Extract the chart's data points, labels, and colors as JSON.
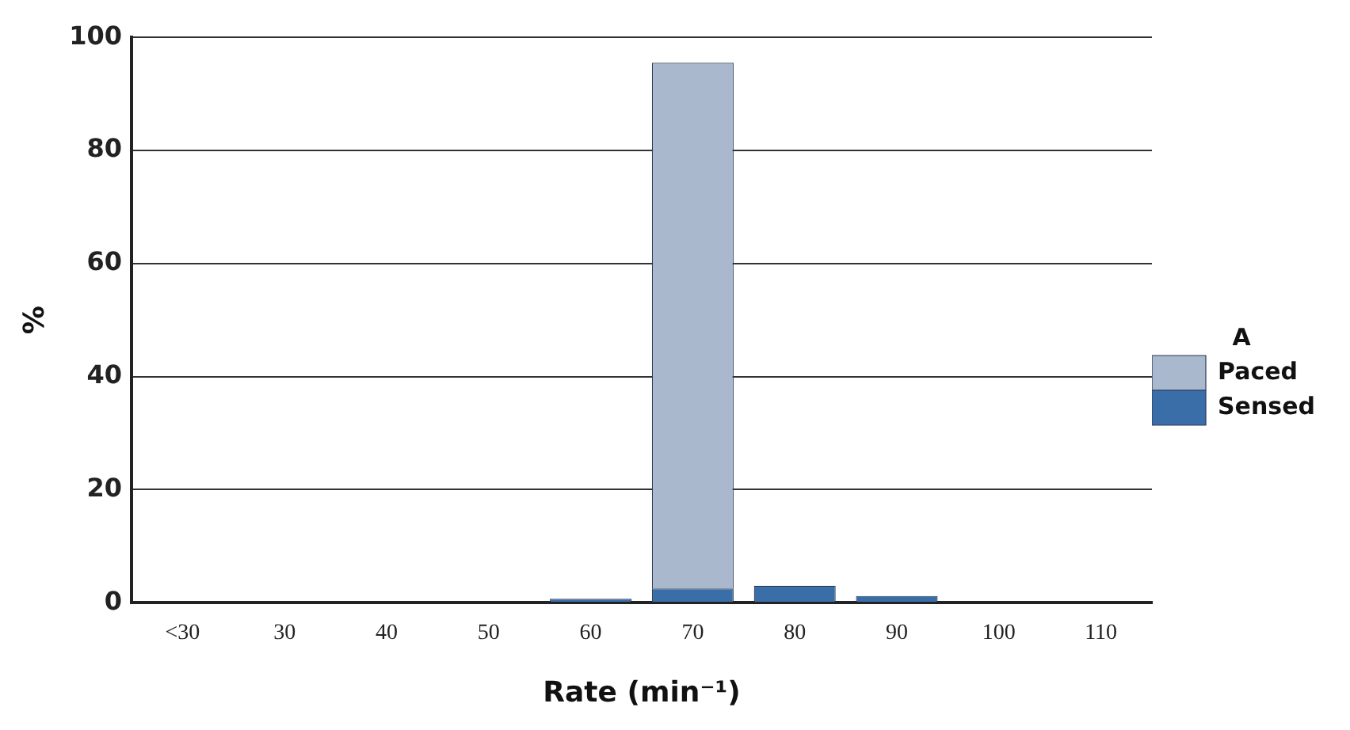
{
  "chart_data": {
    "type": "bar",
    "xlabel": "Rate (min⁻¹)",
    "ylabel": "%",
    "legend_title": "A",
    "categories": [
      "<30",
      "30",
      "40",
      "50",
      "60",
      "70",
      "80",
      "90",
      "100",
      "110"
    ],
    "stacked": true,
    "series": [
      {
        "name": "Sensed",
        "color": "#3a6ea8",
        "values": [
          0,
          0,
          0,
          0,
          0.7,
          2.5,
          3,
          1.2,
          0,
          0
        ]
      },
      {
        "name": "Paced",
        "color": "#a9b8cc",
        "values": [
          0,
          0,
          0,
          0,
          0,
          93,
          0,
          0,
          0,
          0
        ]
      }
    ],
    "ylim": [
      0,
      100
    ],
    "yticks": [
      0,
      20,
      40,
      60,
      80,
      100
    ],
    "grid": "y",
    "legend": "right"
  }
}
